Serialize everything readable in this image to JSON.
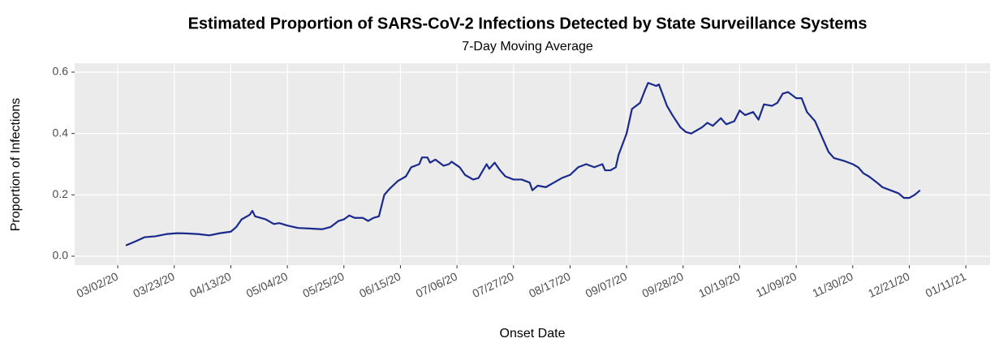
{
  "chart_data": {
    "type": "line",
    "title": "Estimated Proportion of SARS-CoV-2 Infections Detected by State Surveillance Systems",
    "subtitle": "7-Day Moving Average",
    "x_label": "Onset Date",
    "y_label": "Proportion of Infections",
    "x": [
      "2020-03-05",
      "2020-03-09",
      "2020-03-12",
      "2020-03-16",
      "2020-03-20",
      "2020-03-24",
      "2020-03-28",
      "2020-04-01",
      "2020-04-05",
      "2020-04-09",
      "2020-04-13",
      "2020-04-15",
      "2020-04-17",
      "2020-04-20",
      "2020-04-21",
      "2020-04-22",
      "2020-04-26",
      "2020-04-29",
      "2020-05-01",
      "2020-05-04",
      "2020-05-08",
      "2020-05-13",
      "2020-05-17",
      "2020-05-20",
      "2020-05-23",
      "2020-05-25",
      "2020-05-27",
      "2020-05-29",
      "2020-06-01",
      "2020-06-03",
      "2020-06-05",
      "2020-06-07",
      "2020-06-09",
      "2020-06-11",
      "2020-06-14",
      "2020-06-17",
      "2020-06-19",
      "2020-06-22",
      "2020-06-23",
      "2020-06-25",
      "2020-06-26",
      "2020-06-28",
      "2020-07-01",
      "2020-07-03",
      "2020-07-04",
      "2020-07-07",
      "2020-07-09",
      "2020-07-12",
      "2020-07-14",
      "2020-07-15",
      "2020-07-17",
      "2020-07-18",
      "2020-07-20",
      "2020-07-22",
      "2020-07-24",
      "2020-07-27",
      "2020-07-30",
      "2020-08-02",
      "2020-08-03",
      "2020-08-05",
      "2020-08-08",
      "2020-08-11",
      "2020-08-14",
      "2020-08-17",
      "2020-08-20",
      "2020-08-23",
      "2020-08-26",
      "2020-08-29",
      "2020-08-30",
      "2020-09-01",
      "2020-09-03",
      "2020-09-04",
      "2020-09-07",
      "2020-09-09",
      "2020-09-12",
      "2020-09-14",
      "2020-09-15",
      "2020-09-18",
      "2020-09-19",
      "2020-09-22",
      "2020-09-24",
      "2020-09-27",
      "2020-09-29",
      "2020-10-01",
      "2020-10-03",
      "2020-10-05",
      "2020-10-07",
      "2020-10-09",
      "2020-10-12",
      "2020-10-14",
      "2020-10-17",
      "2020-10-19",
      "2020-10-21",
      "2020-10-24",
      "2020-10-26",
      "2020-10-28",
      "2020-10-31",
      "2020-11-02",
      "2020-11-04",
      "2020-11-06",
      "2020-11-09",
      "2020-11-11",
      "2020-11-13",
      "2020-11-16",
      "2020-11-18",
      "2020-11-21",
      "2020-11-23",
      "2020-11-25",
      "2020-11-27",
      "2020-11-30",
      "2020-12-02",
      "2020-12-04",
      "2020-12-06",
      "2020-12-09",
      "2020-12-11",
      "2020-12-14",
      "2020-12-17",
      "2020-12-19",
      "2020-12-21",
      "2020-12-23",
      "2020-12-25"
    ],
    "series": [
      {
        "name": "Proportion of Infections",
        "color": "#1a2a8c",
        "values": [
          0.035,
          0.05,
          0.062,
          0.065,
          0.072,
          0.075,
          0.074,
          0.072,
          0.068,
          0.075,
          0.08,
          0.095,
          0.12,
          0.135,
          0.148,
          0.13,
          0.12,
          0.105,
          0.108,
          0.1,
          0.092,
          0.09,
          0.088,
          0.095,
          0.115,
          0.12,
          0.133,
          0.125,
          0.125,
          0.115,
          0.125,
          0.13,
          0.2,
          0.22,
          0.245,
          0.26,
          0.29,
          0.3,
          0.322,
          0.322,
          0.305,
          0.315,
          0.295,
          0.3,
          0.308,
          0.29,
          0.265,
          0.25,
          0.255,
          0.27,
          0.3,
          0.285,
          0.305,
          0.28,
          0.26,
          0.25,
          0.25,
          0.24,
          0.215,
          0.23,
          0.225,
          0.24,
          0.255,
          0.265,
          0.29,
          0.3,
          0.29,
          0.3,
          0.28,
          0.28,
          0.29,
          0.33,
          0.4,
          0.48,
          0.5,
          0.545,
          0.565,
          0.555,
          0.56,
          0.49,
          0.46,
          0.42,
          0.405,
          0.4,
          0.41,
          0.42,
          0.435,
          0.425,
          0.45,
          0.43,
          0.44,
          0.475,
          0.46,
          0.47,
          0.445,
          0.495,
          0.49,
          0.5,
          0.53,
          0.535,
          0.515,
          0.515,
          0.47,
          0.44,
          0.4,
          0.34,
          0.32,
          0.315,
          0.31,
          0.3,
          0.29,
          0.27,
          0.26,
          0.24,
          0.225,
          0.215,
          0.205,
          0.19,
          0.19,
          0.2,
          0.215
        ]
      }
    ],
    "xlim": [
      "2020-02-15",
      "2021-01-20"
    ],
    "xticks": [
      {
        "value": "2020-03-02",
        "label": "03/02/20"
      },
      {
        "value": "2020-03-23",
        "label": "03/23/20"
      },
      {
        "value": "2020-04-13",
        "label": "04/13/20"
      },
      {
        "value": "2020-05-04",
        "label": "05/04/20"
      },
      {
        "value": "2020-05-25",
        "label": "05/25/20"
      },
      {
        "value": "2020-06-15",
        "label": "06/15/20"
      },
      {
        "value": "2020-07-06",
        "label": "07/06/20"
      },
      {
        "value": "2020-07-27",
        "label": "07/27/20"
      },
      {
        "value": "2020-08-17",
        "label": "08/17/20"
      },
      {
        "value": "2020-09-07",
        "label": "09/07/20"
      },
      {
        "value": "2020-09-28",
        "label": "09/28/20"
      },
      {
        "value": "2020-10-19",
        "label": "10/19/20"
      },
      {
        "value": "2020-11-09",
        "label": "11/09/20"
      },
      {
        "value": "2020-11-30",
        "label": "11/30/20"
      },
      {
        "value": "2020-12-21",
        "label": "12/21/20"
      },
      {
        "value": "2021-01-11",
        "label": "01/11/21"
      }
    ],
    "ylim": [
      -0.029,
      0.629
    ],
    "yticks": [
      {
        "value": 0,
        "label": "0.0"
      },
      0.2,
      0.4,
      0.6
    ],
    "grid": true
  }
}
